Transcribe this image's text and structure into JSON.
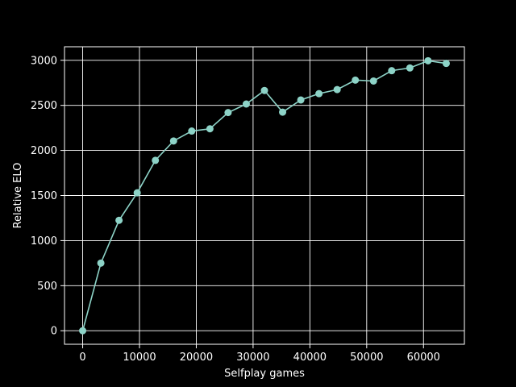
{
  "chart_data": {
    "type": "line",
    "xlabel": "Selfplay games",
    "ylabel": "Relative ELO",
    "xlim": [
      -3200,
      67200
    ],
    "ylim": [
      -150,
      3150
    ],
    "xticks": [
      0,
      10000,
      20000,
      30000,
      40000,
      50000,
      60000
    ],
    "yticks": [
      0,
      500,
      1000,
      1500,
      2000,
      2500,
      3000
    ],
    "grid": true,
    "colors": {
      "background": "#000000",
      "axes": "#ffffff",
      "grid": "#ffffff",
      "line": "#8dd3c7"
    },
    "series": [
      {
        "x": [
          0,
          3200,
          6400,
          9600,
          12800,
          16000,
          19200,
          22400,
          25600,
          28800,
          32000,
          35200,
          38400,
          41600,
          44800,
          48000,
          51200,
          54400,
          57600,
          60800,
          64000
        ],
        "y": [
          0,
          750,
          1225,
          1530,
          1890,
          2105,
          2215,
          2240,
          2420,
          2515,
          2665,
          2425,
          2560,
          2630,
          2675,
          2780,
          2770,
          2885,
          2915,
          2995,
          2965
        ]
      }
    ]
  }
}
